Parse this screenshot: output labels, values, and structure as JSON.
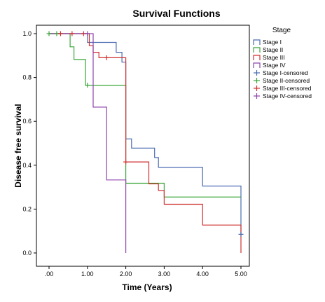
{
  "chart_data": {
    "type": "line",
    "title": "Survival Functions",
    "xlabel": "Time (Years)",
    "ylabel": "Disease free survival",
    "xlim": [
      0,
      5
    ],
    "ylim": [
      0,
      1
    ],
    "x_ticks": [
      ".00",
      "1.00",
      "2.00",
      "3.00",
      "4.00",
      "5.00"
    ],
    "y_ticks": [
      "0.0",
      "0.2",
      "0.4",
      "0.6",
      "0.8",
      "1.0"
    ],
    "grid": false,
    "legend_title": "Stage",
    "legend_position": "right",
    "series": [
      {
        "name": "Stage I",
        "color": "#4a6bb0",
        "points": [
          [
            0,
            1.0
          ],
          [
            1.0,
            1.0
          ],
          [
            1.0,
            0.96
          ],
          [
            1.75,
            0.96
          ],
          [
            1.75,
            0.915
          ],
          [
            1.9,
            0.915
          ],
          [
            1.9,
            0.87
          ],
          [
            2.0,
            0.87
          ],
          [
            2.0,
            0.52
          ],
          [
            2.15,
            0.52
          ],
          [
            2.15,
            0.478
          ],
          [
            2.75,
            0.478
          ],
          [
            2.75,
            0.435
          ],
          [
            2.85,
            0.435
          ],
          [
            2.85,
            0.39
          ],
          [
            4.0,
            0.39
          ],
          [
            4.0,
            0.305
          ],
          [
            5.0,
            0.305
          ],
          [
            5.0,
            0.085
          ]
        ]
      },
      {
        "name": "Stage II",
        "color": "#3aa53a",
        "points": [
          [
            0,
            1.0
          ],
          [
            0.55,
            1.0
          ],
          [
            0.55,
            0.94
          ],
          [
            0.65,
            0.94
          ],
          [
            0.65,
            0.882
          ],
          [
            0.95,
            0.882
          ],
          [
            0.95,
            0.765
          ],
          [
            2.0,
            0.765
          ],
          [
            2.0,
            0.318
          ],
          [
            3.0,
            0.318
          ],
          [
            3.0,
            0.255
          ],
          [
            5.0,
            0.255
          ]
        ]
      },
      {
        "name": "Stage III",
        "color": "#d03030",
        "points": [
          [
            0,
            1.0
          ],
          [
            1.05,
            1.0
          ],
          [
            1.05,
            0.945
          ],
          [
            1.15,
            0.945
          ],
          [
            1.15,
            0.915
          ],
          [
            1.3,
            0.915
          ],
          [
            1.3,
            0.89
          ],
          [
            2.0,
            0.89
          ],
          [
            2.0,
            0.415
          ],
          [
            2.6,
            0.415
          ],
          [
            2.6,
            0.315
          ],
          [
            2.85,
            0.315
          ],
          [
            2.85,
            0.285
          ],
          [
            3.0,
            0.285
          ],
          [
            3.0,
            0.222
          ],
          [
            4.0,
            0.222
          ],
          [
            4.0,
            0.127
          ],
          [
            5.0,
            0.127
          ],
          [
            5.0,
            0.0
          ]
        ]
      },
      {
        "name": "Stage IV",
        "color": "#8e44ad",
        "points": [
          [
            0,
            1.0
          ],
          [
            1.15,
            1.0
          ],
          [
            1.15,
            0.665
          ],
          [
            1.5,
            0.665
          ],
          [
            1.5,
            0.333
          ],
          [
            2.0,
            0.333
          ],
          [
            2.0,
            0.0
          ]
        ]
      }
    ],
    "censored": [
      {
        "name": "Stage I-censored",
        "color": "#4a6bb0",
        "points": [
          [
            5.0,
            0.085
          ]
        ]
      },
      {
        "name": "Stage II-censored",
        "color": "#3aa53a",
        "points": [
          [
            0.0,
            1.0
          ],
          [
            0.2,
            1.0
          ],
          [
            1.0,
            0.765
          ]
        ]
      },
      {
        "name": "Stage III-censored",
        "color": "#d03030",
        "points": [
          [
            0.3,
            1.0
          ],
          [
            0.6,
            1.0
          ],
          [
            0.9,
            1.0
          ],
          [
            1.5,
            0.89
          ],
          [
            2.0,
            0.415
          ]
        ]
      },
      {
        "name": "Stage IV-censored",
        "color": "#8e44ad",
        "points": [
          [
            1.0,
            1.0
          ]
        ]
      }
    ]
  }
}
